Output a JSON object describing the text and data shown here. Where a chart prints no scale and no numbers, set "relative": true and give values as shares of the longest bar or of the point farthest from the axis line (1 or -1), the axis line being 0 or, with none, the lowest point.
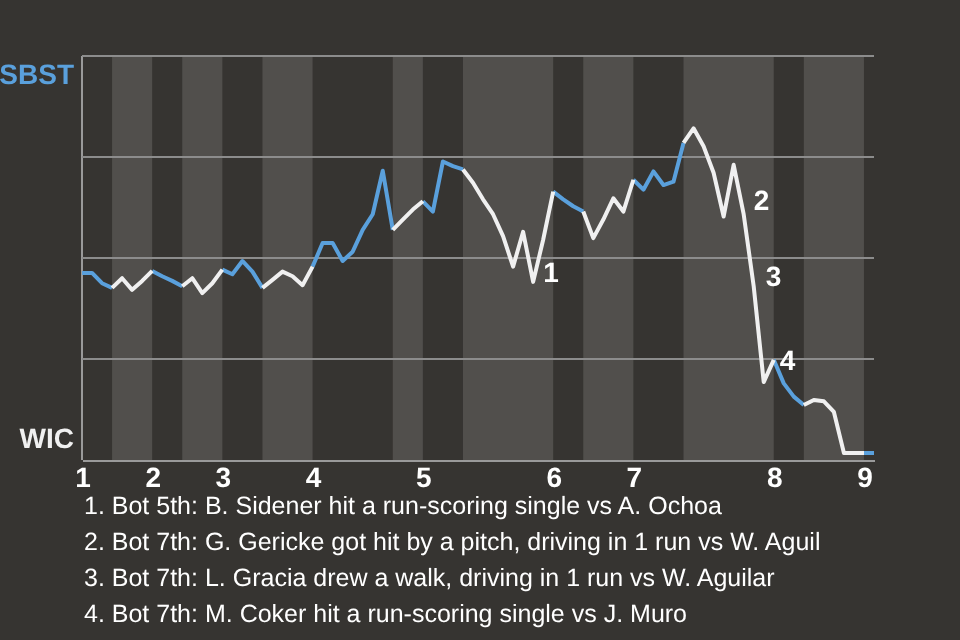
{
  "chart_data": {
    "type": "line",
    "relative": true,
    "categories": [
      "1",
      null,
      null,
      null,
      null,
      null,
      null,
      "2",
      null,
      null,
      null,
      null,
      null,
      null,
      "3",
      null,
      null,
      null,
      null,
      null,
      null,
      null,
      null,
      "4",
      null,
      null,
      null,
      null,
      null,
      null,
      null,
      null,
      null,
      null,
      "5",
      null,
      null,
      null,
      null,
      null,
      null,
      null,
      null,
      null,
      null,
      null,
      null,
      "6",
      null,
      null,
      null,
      null,
      null,
      null,
      null,
      "7",
      null,
      null,
      null,
      null,
      null,
      null,
      null,
      null,
      null,
      null,
      null,
      null,
      null,
      "8",
      null,
      null,
      null,
      null,
      null,
      null,
      null,
      null,
      "9",
      null
    ],
    "series": [
      {
        "name": "SBST",
        "color": "#5aa0dc",
        "values": [
          0.564,
          0.564,
          0.533,
          0.519,
          null,
          null,
          null,
          0.57,
          0.554,
          0.54,
          0.524,
          null,
          null,
          null,
          0.574,
          0.56,
          0.6,
          0.568,
          0.519,
          null,
          null,
          null,
          null,
          0.583,
          0.654,
          0.654,
          0.6,
          0.628,
          0.694,
          0.741,
          0.872,
          0.694,
          null,
          null,
          0.78,
          0.749,
          0.9,
          0.886,
          0.876,
          null,
          null,
          null,
          null,
          null,
          null,
          null,
          null,
          0.809,
          0.786,
          0.765,
          0.749,
          null,
          null,
          null,
          null,
          0.845,
          0.815,
          0.87,
          0.829,
          0.839,
          0.956,
          null,
          null,
          null,
          null,
          null,
          null,
          null,
          null,
          0.302,
          0.231,
          0.191,
          0.166,
          null,
          null,
          null,
          null,
          null,
          0.021,
          0.021
        ]
      },
      {
        "name": "WIC",
        "color": "#f0f0f0",
        "values": [
          null,
          null,
          null,
          0.519,
          0.548,
          0.513,
          0.54,
          0.57,
          null,
          null,
          0.524,
          0.548,
          0.503,
          0.533,
          0.574,
          null,
          null,
          null,
          0.519,
          0.543,
          0.568,
          0.554,
          0.527,
          0.583,
          null,
          null,
          null,
          null,
          null,
          null,
          null,
          0.694,
          0.725,
          0.755,
          0.78,
          null,
          null,
          null,
          0.876,
          0.836,
          0.786,
          0.741,
          0.675,
          0.583,
          0.688,
          0.537,
          0.664,
          0.809,
          null,
          null,
          0.749,
          0.669,
          0.725,
          0.789,
          0.749,
          0.845,
          null,
          null,
          null,
          null,
          0.956,
          1,
          0.946,
          0.866,
          0.734,
          0.89,
          0.741,
          0.524,
          0.235,
          0.302,
          null,
          null,
          0.166,
          0.181,
          0.177,
          0.145,
          0.021,
          0.021,
          0.021,
          null
        ]
      }
    ],
    "grid": "y",
    "legend": "left",
    "annotations": [
      "1",
      "2",
      "3",
      "4",
      "1. Bot 5th: B. Sidener hit a run-scoring single vs A. Ochoa",
      "2. Bot 7th: G. Gericke got hit by a pitch, driving in 1 run vs W. Aguil",
      "3. Bot 7th: L. Gracia drew a walk, driving in 1 run vs W. Aguilar",
      "4. Bot 7th: M. Coker hit a run-scoring single vs J. Muro"
    ]
  }
}
